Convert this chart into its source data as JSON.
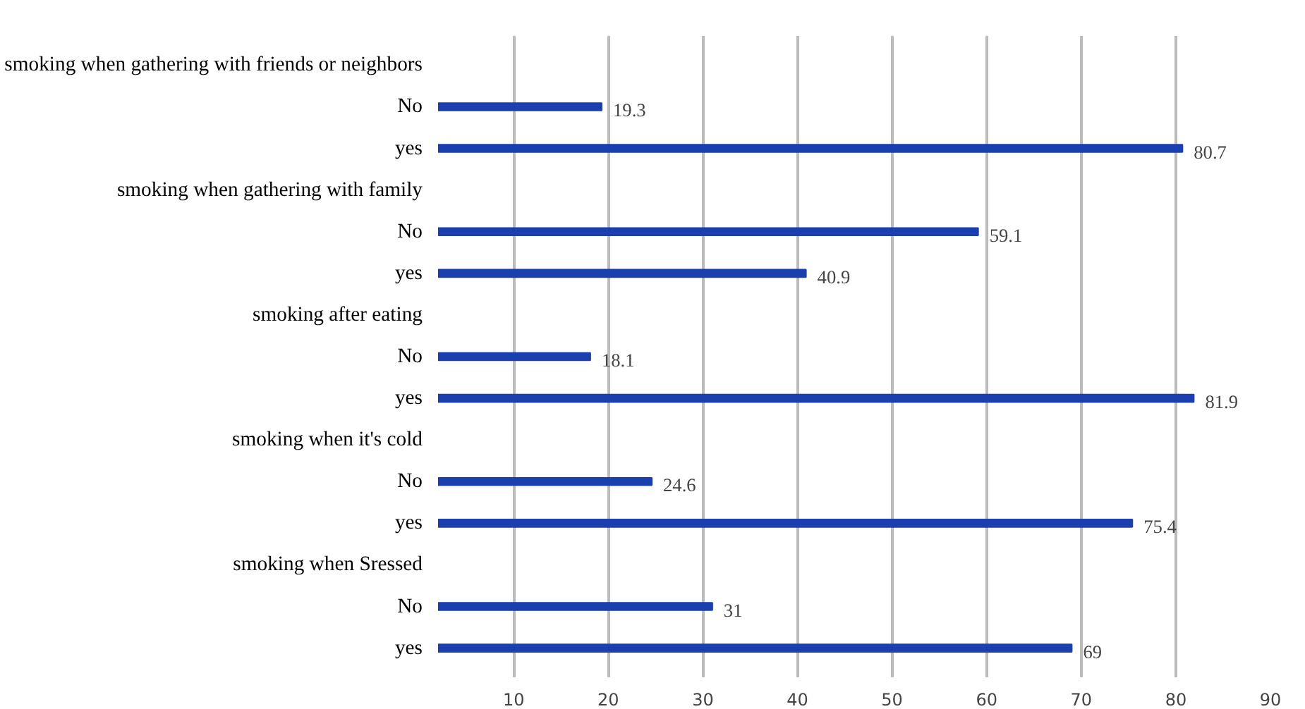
{
  "chart_data": {
    "type": "bar",
    "orientation": "horizontal",
    "categories": [
      "smoking when gathering with friends or neighbors",
      "No",
      "yes",
      "smoking when gathering with family",
      "No",
      "yes",
      "smoking after eating",
      "No",
      "yes",
      "smoking when it's cold",
      "No",
      "yes",
      "smoking when Sressed",
      "No",
      "yes"
    ],
    "values": [
      null,
      19.3,
      80.7,
      null,
      59.1,
      40.9,
      null,
      18.1,
      81.9,
      null,
      24.6,
      75.4,
      null,
      31,
      69
    ],
    "color": "#1a3fae",
    "data_labels": true,
    "grid": "x",
    "xlim": [
      2,
      90
    ],
    "xticks": [
      10,
      20,
      30,
      40,
      50,
      60,
      70,
      80,
      90
    ]
  }
}
